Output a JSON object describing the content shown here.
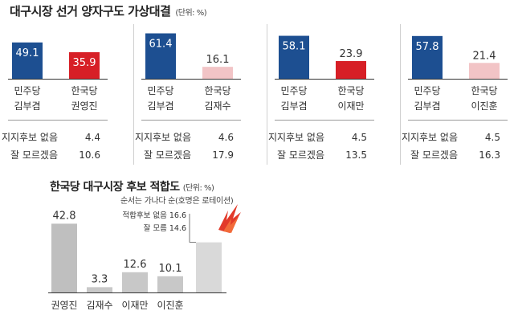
{
  "title": "대구시장 선거 양자구도 가상대결",
  "title_unit": "(단위: %)",
  "colors": {
    "party_a": "#1d4f91",
    "party_b": "#d71f26",
    "party_b_light": "#f2c4c6",
    "second_bar": "#bfbfbf",
    "divider": "#9a9a9a"
  },
  "chart_data": [
    {
      "type": "bar",
      "panels": [
        {
          "matchup": [
            {
              "party": "민주당",
              "candidate": "김부겸",
              "value": 49.1
            },
            {
              "party": "한국당",
              "candidate": "권영진",
              "value": 35.9
            }
          ],
          "no_support_label": "지지후보 없음",
          "no_support": 4.4,
          "dont_know_label": "잘 모르겠음",
          "dont_know": 10.6
        },
        {
          "matchup": [
            {
              "party": "민주당",
              "candidate": "김부겸",
              "value": 61.4
            },
            {
              "party": "한국당",
              "candidate": "김재수",
              "value": 16.1
            }
          ],
          "no_support_label": "지지후보 없음",
          "no_support": 4.6,
          "dont_know_label": "잘 모르겠음",
          "dont_know": 17.9
        },
        {
          "matchup": [
            {
              "party": "민주당",
              "candidate": "김부겸",
              "value": 58.1
            },
            {
              "party": "한국당",
              "candidate": "이재만",
              "value": 23.9
            }
          ],
          "no_support_label": "지지후보 없음",
          "no_support": 4.5,
          "dont_know_label": "잘 모르겠음",
          "dont_know": 13.5
        },
        {
          "matchup": [
            {
              "party": "민주당",
              "candidate": "김부겸",
              "value": 57.8
            },
            {
              "party": "한국당",
              "candidate": "이진훈",
              "value": 21.4
            }
          ],
          "no_support_label": "지지후보 없음",
          "no_support": 4.5,
          "dont_know_label": "잘 모르겠음",
          "dont_know": 16.3
        }
      ]
    },
    {
      "type": "bar",
      "title": "한국당 대구시장 후보 적합도",
      "title_unit": "(단위: %)",
      "note": "순서는 가나다 순(호명은 로테이션)",
      "categories": [
        "권영진",
        "김재수",
        "이재만",
        "이진훈"
      ],
      "values": [
        42.8,
        3.3,
        12.6,
        10.1
      ],
      "extra": {
        "lines": [
          {
            "label": "적합후보 없음",
            "value": 16.6
          },
          {
            "label": "잘 모름",
            "value": 14.6
          }
        ]
      }
    }
  ]
}
